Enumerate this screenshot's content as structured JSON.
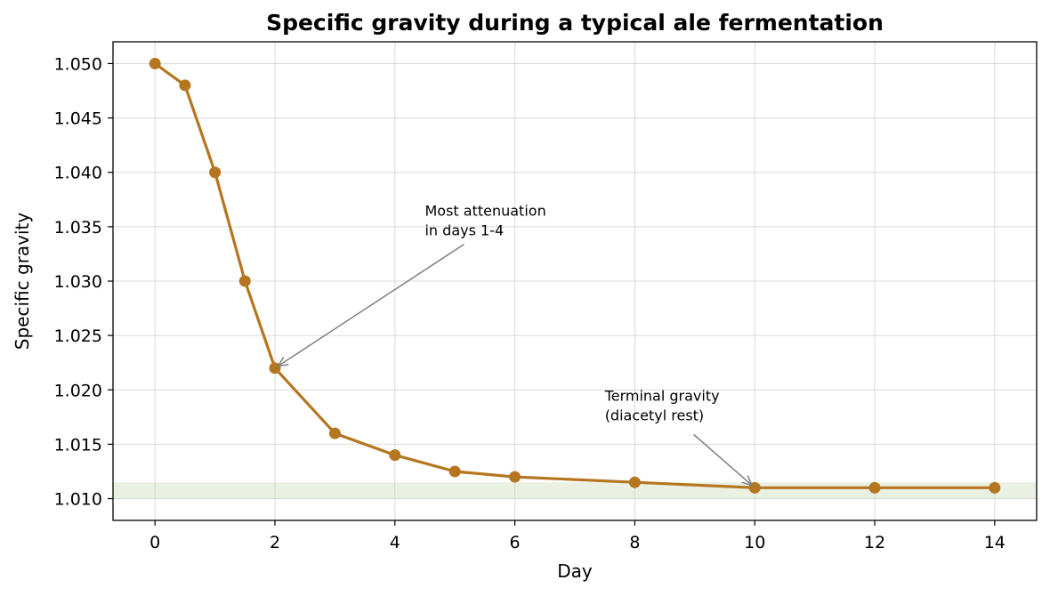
{
  "chart_data": {
    "type": "line",
    "title": "Specific gravity during a typical ale fermentation",
    "xlabel": "Day",
    "ylabel": "Specific gravity",
    "xlim": [
      -0.7,
      14.7
    ],
    "ylim": [
      1.008,
      1.052
    ],
    "xticks": [
      0,
      2,
      4,
      6,
      8,
      10,
      12,
      14
    ],
    "yticks": [
      1.01,
      1.015,
      1.02,
      1.025,
      1.03,
      1.035,
      1.04,
      1.045,
      1.05
    ],
    "ytick_labels": [
      "1.010",
      "1.015",
      "1.020",
      "1.025",
      "1.030",
      "1.035",
      "1.040",
      "1.045",
      "1.050"
    ],
    "grid": true,
    "series": [
      {
        "color": "#b5761f",
        "x": [
          0,
          0.5,
          1,
          1.5,
          2,
          3,
          4,
          5,
          6,
          8,
          10,
          12,
          14
        ],
        "y": [
          1.05,
          1.048,
          1.04,
          1.03,
          1.022,
          1.016,
          1.014,
          1.0125,
          1.012,
          1.0115,
          1.011,
          1.011,
          1.011
        ]
      }
    ],
    "band": {
      "y_from": 1.01,
      "y_to": 1.0115,
      "color": "#e8f0e0"
    },
    "annotations": [
      {
        "lines": [
          "Most attenuation",
          "in days 1-4"
        ],
        "text_at": [
          4.5,
          1.036
        ],
        "point": [
          2,
          1.022
        ]
      },
      {
        "lines": [
          "Terminal gravity",
          "(diacetyl rest)"
        ],
        "text_at": [
          7.5,
          1.019
        ],
        "point": [
          10,
          1.011
        ]
      }
    ]
  }
}
